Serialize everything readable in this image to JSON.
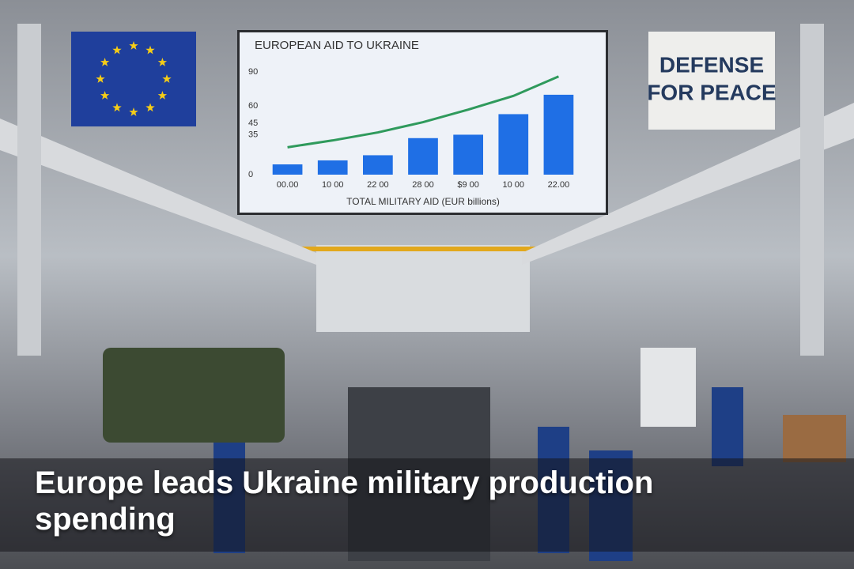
{
  "chart_data": {
    "type": "bar",
    "title": "EUROPEAN AID TO UKRAINE",
    "x_label": "TOTAL MILITARY AID (EUR billions)",
    "categories": [
      "00.00",
      "10 00",
      "22 00",
      "28 00",
      "$9 00",
      "10 00",
      "22.00"
    ],
    "series": [
      {
        "type": "bar",
        "color": "#1f6fe5",
        "values": [
          9,
          12.5,
          17,
          32,
          35,
          53,
          70
        ]
      },
      {
        "type": "line",
        "color": "#2f9a5c",
        "values": [
          24,
          30,
          37,
          46,
          57,
          69,
          86
        ]
      }
    ],
    "ylim": [
      0,
      90
    ],
    "yticks": [
      0,
      35,
      45,
      60,
      90
    ],
    "grid": false
  },
  "banner": {
    "lines": [
      "DEFENSE",
      "FOR PEACE"
    ]
  },
  "caption": "Europe leads Ukraine military production spending"
}
